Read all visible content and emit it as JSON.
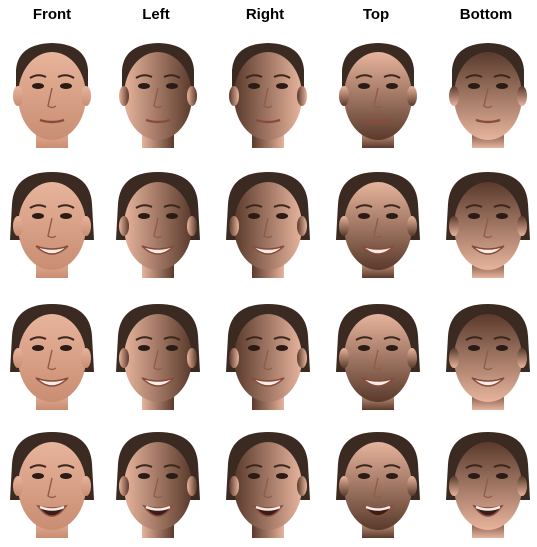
{
  "columns": [
    "Front",
    "Left",
    "Right",
    "Top",
    "Bottom"
  ],
  "rows": [
    {
      "subject": "man-short-hair",
      "gender": "male",
      "expression": "neutral"
    },
    {
      "subject": "woman-1",
      "gender": "female",
      "expression": "smile"
    },
    {
      "subject": "woman-2",
      "gender": "female",
      "expression": "smile"
    },
    {
      "subject": "woman-3",
      "gender": "female",
      "expression": "open-smile"
    }
  ],
  "lighting": [
    "front",
    "left",
    "right",
    "top",
    "bottom"
  ],
  "colors": {
    "skin_light": "#e7b49c",
    "skin_mid": "#c98d72",
    "skin_dark": "#5a3a2c",
    "hair": "#3a2a22",
    "background": "#ffffff"
  }
}
